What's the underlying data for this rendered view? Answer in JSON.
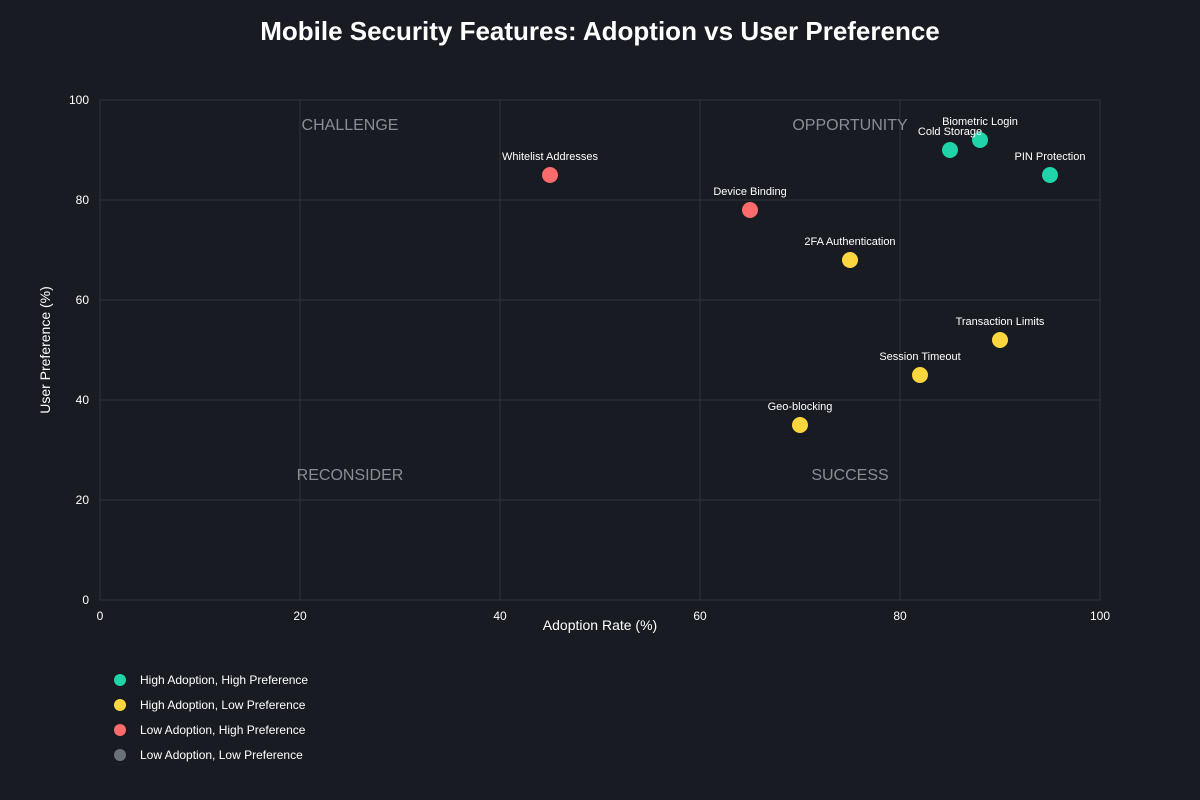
{
  "colors": {
    "background": "#181b21",
    "grid": "#2f343c",
    "high_high": "#1fd4a8",
    "high_low": "#fcd53f",
    "low_high": "#fb6b6b",
    "low_low": "#6b7178"
  },
  "chart_data": {
    "type": "scatter",
    "title": "Mobile Security Features: Adoption vs User Preference",
    "xlabel": "Adoption Rate (%)",
    "ylabel": "User Preference (%)",
    "xlim": [
      0,
      100
    ],
    "ylim": [
      0,
      100
    ],
    "xticks": [
      "0",
      "20",
      "40",
      "60",
      "80",
      "100"
    ],
    "yticks": [
      "0",
      "20",
      "40",
      "60",
      "80",
      "100"
    ],
    "grid": true,
    "quadrants": [
      {
        "label": "CHALLENGE",
        "x": 25,
        "y": 95
      },
      {
        "label": "OPPORTUNITY",
        "x": 75,
        "y": 95
      },
      {
        "label": "RECONSIDER",
        "x": 25,
        "y": 25
      },
      {
        "label": "SUCCESS",
        "x": 75,
        "y": 25
      }
    ],
    "points": [
      {
        "label": "Biometric Login",
        "x": 88,
        "y": 92,
        "category": "high_high"
      },
      {
        "label": "Cold Storage",
        "x": 85,
        "y": 90,
        "category": "high_high"
      },
      {
        "label": "PIN Protection",
        "x": 95,
        "y": 85,
        "category": "high_high"
      },
      {
        "label": "Whitelist Addresses",
        "x": 45,
        "y": 85,
        "category": "low_high"
      },
      {
        "label": "Device Binding",
        "x": 65,
        "y": 78,
        "category": "low_high"
      },
      {
        "label": "2FA Authentication",
        "x": 75,
        "y": 68,
        "category": "high_low"
      },
      {
        "label": "Transaction Limits",
        "x": 90,
        "y": 52,
        "category": "high_low"
      },
      {
        "label": "Session Timeout",
        "x": 82,
        "y": 45,
        "category": "high_low"
      },
      {
        "label": "Geo-blocking",
        "x": 70,
        "y": 35,
        "category": "high_low"
      }
    ],
    "legend": [
      {
        "label": "High Adoption, High Preference",
        "category": "high_high"
      },
      {
        "label": "High Adoption, Low Preference",
        "category": "high_low"
      },
      {
        "label": "Low Adoption, High Preference",
        "category": "low_high"
      },
      {
        "label": "Low Adoption, Low Preference",
        "category": "low_low"
      }
    ],
    "legend_position": "bottom-left"
  }
}
